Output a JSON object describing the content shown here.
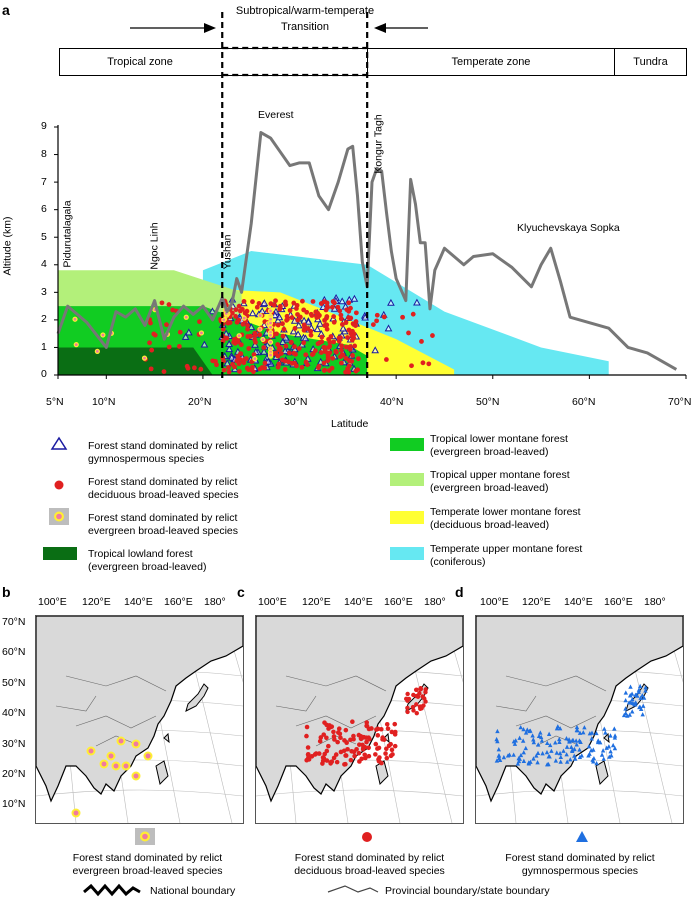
{
  "panels": {
    "a": "a",
    "b": "b",
    "c": "c",
    "d": "d"
  },
  "header": {
    "transition_title_line1": "Subtropical/warm-temperate",
    "transition_title_line2": "Transition",
    "zones": [
      "Tropical zone",
      "Temperate zone",
      "Tundra"
    ]
  },
  "chart_data": {
    "type": "area+line+scatter",
    "title": "",
    "xlabel": "Latitude",
    "ylabel": "Altitude (km)",
    "xlim": [
      5,
      70
    ],
    "ylim": [
      0,
      9
    ],
    "x_ticks": [
      "5°N",
      "10°N",
      "20°N",
      "30°N",
      "40°N",
      "50°N",
      "60°N",
      "70°N"
    ],
    "x_tick_values": [
      5,
      10,
      20,
      30,
      40,
      50,
      60,
      70
    ],
    "y_ticks": [
      "0",
      "1",
      "2",
      "3",
      "4",
      "5",
      "6",
      "7",
      "8",
      "9"
    ],
    "transition_band": [
      22,
      37
    ],
    "areas": [
      {
        "name": "Temperate upper montane forest (coniferous)",
        "color": "#66e8f2",
        "points": [
          [
            20,
            3.8
          ],
          [
            25,
            4.5
          ],
          [
            37,
            4.0
          ],
          [
            45,
            2.3
          ],
          [
            55,
            1.0
          ],
          [
            62,
            0.5
          ],
          [
            62,
            0
          ],
          [
            20,
            0
          ]
        ]
      },
      {
        "name": "Temperate lower montane forest (deciduous broad-leaved)",
        "color": "#ffff33",
        "points": [
          [
            22,
            3.1
          ],
          [
            28,
            3.0
          ],
          [
            33,
            2.3
          ],
          [
            40,
            1.3
          ],
          [
            46,
            0.2
          ],
          [
            46,
            0
          ],
          [
            22,
            0
          ]
        ]
      },
      {
        "name": "Tropical upper montane forest (evergreen broad-leaved)",
        "color": "#b3f07a",
        "points": [
          [
            5,
            3.8
          ],
          [
            17,
            3.8
          ],
          [
            24,
            3.0
          ],
          [
            24,
            0
          ],
          [
            5,
            0
          ]
        ]
      },
      {
        "name": "Tropical lower montane forest (evergreen broad-leaved)",
        "color": "#11cc22",
        "points": [
          [
            5,
            2.5
          ],
          [
            20,
            2.5
          ],
          [
            28,
            1.5
          ],
          [
            35,
            1.1
          ],
          [
            37,
            0.7
          ],
          [
            37,
            0
          ],
          [
            5,
            0
          ]
        ]
      },
      {
        "name": "Tropical lowland forest (evergreen broad-leaved)",
        "color": "#0a6e14",
        "points": [
          [
            5,
            1.0
          ],
          [
            19,
            1.0
          ],
          [
            21,
            0
          ],
          [
            5,
            0
          ]
        ]
      }
    ],
    "ridge_line": {
      "name": "Mountain crest profile",
      "color": "#777777",
      "x": [
        5,
        6,
        8,
        10,
        11,
        12,
        13,
        14,
        15,
        16,
        17,
        18,
        19,
        20,
        21,
        22,
        22.5,
        23,
        23.5,
        24,
        25,
        26,
        27,
        28,
        29,
        30,
        31,
        32,
        33,
        34,
        35,
        35.5,
        36,
        36.5,
        37,
        37.5,
        38,
        38.5,
        39,
        39.5,
        40,
        41,
        41.5,
        42,
        42.5,
        43,
        43.5,
        44,
        45,
        46,
        47,
        48,
        50,
        52,
        54,
        55,
        56,
        57,
        58,
        60,
        62,
        64,
        66,
        69
      ],
      "y": [
        1.5,
        2.5,
        1.9,
        1.0,
        2.3,
        2.1,
        2.4,
        1.8,
        2.7,
        1.3,
        2.1,
        2.5,
        2.2,
        2.5,
        2.0,
        2.8,
        2.3,
        2.6,
        3.5,
        3.0,
        5.5,
        8.8,
        8.6,
        8.1,
        7.6,
        7.7,
        7.7,
        6.5,
        6.0,
        7.0,
        8.2,
        8.3,
        6.5,
        4.1,
        3.2,
        7.0,
        7.5,
        7.4,
        5.9,
        4.5,
        3.5,
        2.7,
        7.1,
        6.2,
        4.8,
        4.8,
        2.4,
        3.8,
        4.6,
        4.3,
        4.0,
        4.3,
        4.4,
        3.9,
        3.2,
        4.0,
        4.6,
        3.4,
        2.1,
        1.9,
        1.7,
        1.0,
        0.8,
        0.2
      ]
    },
    "peak_labels": [
      {
        "name": "Pidurutalagala",
        "x": 6.5,
        "y": 4.0,
        "vertical": true
      },
      {
        "name": "Ngoc Linh",
        "x": 15.5,
        "y": 4.0,
        "vertical": true
      },
      {
        "name": "Yushan",
        "x": 23.5,
        "y": 3.5,
        "vertical": true
      },
      {
        "name": "Everest",
        "x": 27.8,
        "y": 9.2,
        "vertical": false
      },
      {
        "name": "Kongur Tagh",
        "x": 38.2,
        "y": 7.4,
        "vertical": true
      },
      {
        "name": "Klyuchevskaya Sopka",
        "x": 48.2,
        "y": 5.2,
        "vertical": false
      }
    ],
    "scatter": [
      {
        "name": "Forest stand dominated by relict gymnospermous species",
        "marker": "open-triangle",
        "color": "#1a1aa0",
        "x_range": [
          18,
          43
        ],
        "y_range": [
          0.2,
          2.8
        ],
        "approx_count": 160
      },
      {
        "name": "Forest stand dominated by relict deciduous broad-leaved species",
        "marker": "dot",
        "color": "#e02020",
        "x_range": [
          14,
          44
        ],
        "y_range": [
          0.1,
          2.7
        ],
        "approx_count": 320
      },
      {
        "name": "Forest stand dominated by relict evergreen broad-leaved species",
        "marker": "ringed-dot",
        "color": "#f07aa0",
        "x_range": [
          6,
          27
        ],
        "y_range": [
          0.5,
          2.4
        ],
        "approx_count": 40
      }
    ]
  },
  "legend": {
    "gymno": "Forest stand dominated by relict\ngymnospermous species",
    "deciduous": "Forest stand dominated by relict\ndeciduous broad-leaved species",
    "evergreen": "Forest stand dominated by relict\nevergreen broad-leaved species",
    "lowland": "Tropical lowland forest\n(evergreen broad-leaved)",
    "lower_montane": "Tropical lower montane forest\n(evergreen broad-leaved)",
    "upper_montane": "Tropical upper montane forest\n(evergreen broad-leaved)",
    "temp_lower": "Temperate lower montane forest\n(deciduous broad-leaved)",
    "temp_upper": "Temperate upper montane forest\n(coniferous)"
  },
  "maps": {
    "lon_ticks": [
      "100°E",
      "120°E",
      "140°E",
      "160°E",
      "180°"
    ],
    "lat_ticks": [
      "70°N",
      "60°N",
      "50°N",
      "40°N",
      "30°N",
      "20°N",
      "10°N"
    ],
    "captions": {
      "b": "Forest stand dominated by relict\nevergreen broad-leaved species",
      "c": "Forest stand dominated by relict\ndeciduous broad-leaved species",
      "d": "Forest stand dominated by relict\ngymnospermous species"
    },
    "colors": {
      "land": "#d9d9d9",
      "evergreen": "#f07aa0",
      "deciduous": "#e02020",
      "gymno": "#1f6fe0"
    }
  },
  "boundary_legend": {
    "national": "National boundary",
    "provincial": "Provincial boundary/state boundary"
  }
}
